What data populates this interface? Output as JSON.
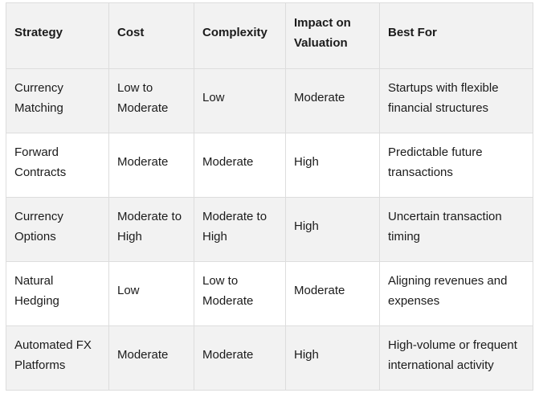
{
  "colors": {
    "header_bg": "#f2f2f2",
    "stripe_bg": "#f2f2f2",
    "row_bg": "#ffffff",
    "border": "#dddddd",
    "text": "#1b1b1b"
  },
  "table": {
    "columns": [
      "Strategy",
      "Cost",
      "Complexity",
      "Impact on Valuation",
      "Best For"
    ],
    "rows": [
      {
        "cells": [
          "Currency Matching",
          "Low to Moderate",
          "Low",
          "Moderate",
          "Startups with flexible financial structures"
        ]
      },
      {
        "cells": [
          "Forward Contracts",
          "Moderate",
          "Moderate",
          "High",
          "Predictable future transactions"
        ]
      },
      {
        "cells": [
          "Currency Options",
          "Moderate to High",
          "Moderate to High",
          "High",
          "Uncertain transaction timing"
        ]
      },
      {
        "cells": [
          "Natural Hedging",
          "Low",
          "Low to Moderate",
          "Moderate",
          "Aligning revenues and expenses"
        ]
      },
      {
        "cells": [
          "Automated FX Platforms",
          "Moderate",
          "Moderate",
          "High",
          "High-volume or frequent international activity"
        ]
      }
    ]
  }
}
